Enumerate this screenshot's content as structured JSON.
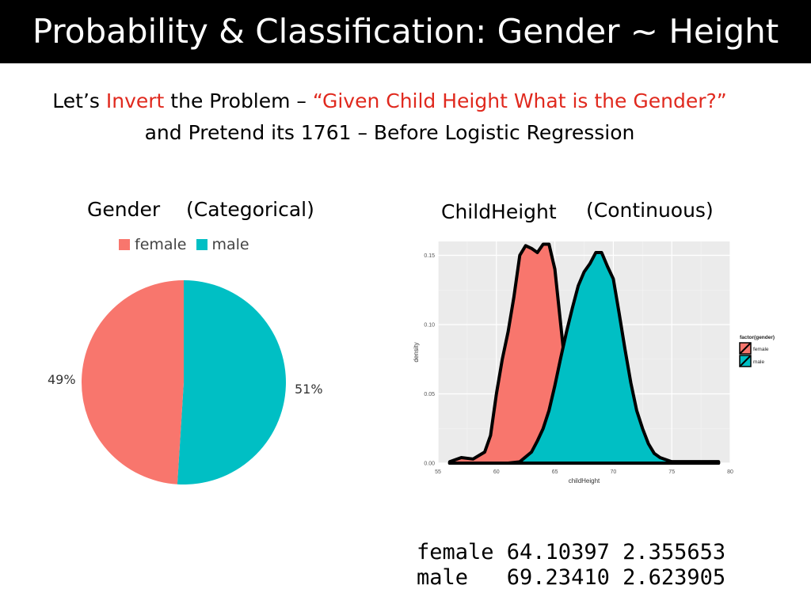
{
  "header": {
    "title": "Probability & Classification:  Gender ~ Height"
  },
  "subtitle": {
    "line1_a": "Let’s ",
    "line1_b": "Invert",
    "line1_c": " the Problem – ",
    "line1_d": "“Given Child Height What is the Gender?”",
    "line2": "and Pretend its 1761 – Before Logistic Regression"
  },
  "left_panel": {
    "title_a": "Gender",
    "title_b": "(Categorical)"
  },
  "right_panel": {
    "title_a": "ChildHeight",
    "title_b": "(Continuous)"
  },
  "colors": {
    "female": "#f8766d",
    "male": "#00bfc4"
  },
  "chart_data": [
    {
      "type": "pie",
      "legend_position": "top",
      "slices": [
        {
          "name": "female",
          "value": 49,
          "label": "49%",
          "color": "#f8766d"
        },
        {
          "name": "male",
          "value": 51,
          "label": "51%",
          "color": "#00bfc4"
        }
      ]
    },
    {
      "type": "area",
      "xlabel": "childHeight",
      "ylabel": "density",
      "xlim": [
        55,
        80
      ],
      "ylim": [
        0,
        0.16
      ],
      "x_ticks": [
        "55",
        "60",
        "65",
        "70",
        "75",
        "80"
      ],
      "y_ticks": [
        "0.00",
        "0.05",
        "0.10",
        "0.15"
      ],
      "grid": true,
      "legend_title": "factor(gender)",
      "legend_position": "right",
      "series": [
        {
          "name": "female",
          "color": "#f8766d",
          "x": [
            56,
            57,
            58,
            59,
            59.5,
            60,
            60.5,
            61,
            61.5,
            62,
            62.5,
            63,
            63.5,
            64,
            64.5,
            65,
            65.5,
            66,
            66.5,
            67,
            67.5,
            68,
            69,
            70,
            71,
            72,
            73,
            74,
            75,
            76,
            77,
            78,
            79
          ],
          "y": [
            0.001,
            0.004,
            0.003,
            0.008,
            0.02,
            0.05,
            0.075,
            0.095,
            0.12,
            0.15,
            0.157,
            0.155,
            0.152,
            0.158,
            0.158,
            0.14,
            0.1,
            0.06,
            0.03,
            0.013,
            0.006,
            0.003,
            0.0015,
            0.001,
            0.001,
            0.001,
            0.001,
            0.001,
            0.001,
            0.001,
            0.001,
            0.001,
            0.001
          ]
        },
        {
          "name": "male",
          "color": "#00bfc4",
          "x": [
            56,
            58,
            60,
            61,
            62,
            63,
            63.5,
            64,
            64.5,
            65,
            65.5,
            66,
            66.5,
            67,
            67.5,
            68,
            68.5,
            69,
            69.5,
            70,
            70.5,
            71,
            71.5,
            72,
            72.5,
            73,
            73.5,
            74,
            75,
            76,
            77,
            78,
            79
          ],
          "y": [
            0,
            0,
            0,
            0,
            0.001,
            0.008,
            0.016,
            0.025,
            0.038,
            0.056,
            0.076,
            0.095,
            0.112,
            0.128,
            0.138,
            0.144,
            0.152,
            0.152,
            0.142,
            0.133,
            0.108,
            0.082,
            0.058,
            0.038,
            0.025,
            0.014,
            0.007,
            0.004,
            0.001,
            0.001,
            0.001,
            0.001,
            0.001
          ]
        }
      ]
    }
  ],
  "stats": {
    "row1": "female 64.10397 2.355653",
    "row2": "male   69.23410 2.623905"
  }
}
